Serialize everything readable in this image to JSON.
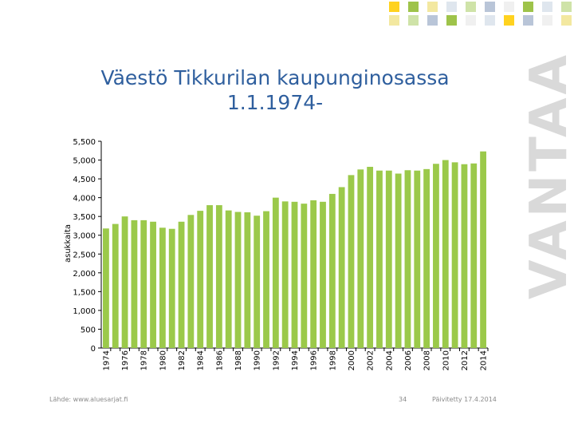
{
  "title": {
    "line1": "Väestö Tikkurilan kaupunginosassa",
    "line2": "1.1.1974-"
  },
  "brand": {
    "logo_text": "VANTAA",
    "logo_color": "#d9d9d9",
    "square_colors": [
      "#ffd21f",
      "#f3e8a0",
      "#9ec34a",
      "#cfe3a8",
      "#b9c5d8",
      "#dfe6ee",
      "#f0f0f0"
    ]
  },
  "footer": {
    "source": "Lähde: www.aluesarjat.fi",
    "page": "34",
    "updated": "Päivitetty 17.4.2014"
  },
  "colors": {
    "title": "#2f5f9e",
    "bar": "#9bc94a",
    "axis": "#000000"
  },
  "chart_data": {
    "type": "bar",
    "title": "",
    "xlabel": "",
    "ylabel": "asukkaita",
    "ylim": [
      0,
      5500
    ],
    "yticks": [
      0,
      500,
      1000,
      1500,
      2000,
      2500,
      3000,
      3500,
      4000,
      4500,
      5000,
      5500
    ],
    "ytick_labels": [
      "0",
      "500",
      "1,000",
      "1,500",
      "2,000",
      "2,500",
      "3,000",
      "3,500",
      "4,000",
      "4,500",
      "5,000",
      "5,500"
    ],
    "categories": [
      "1974",
      "1975",
      "1976",
      "1977",
      "1978",
      "1979",
      "1980",
      "1981",
      "1982",
      "1983",
      "1984",
      "1985",
      "1986",
      "1987",
      "1988",
      "1989",
      "1990",
      "1991",
      "1992",
      "1993",
      "1994",
      "1995",
      "1996",
      "1997",
      "1998",
      "1999",
      "2000",
      "2001",
      "2002",
      "2003",
      "2004",
      "2005",
      "2006",
      "2007",
      "2008",
      "2009",
      "2010",
      "2011",
      "2012",
      "2013",
      "2014"
    ],
    "xtick_labels": [
      "1974",
      "",
      "1976",
      "",
      "1978",
      "",
      "1980",
      "",
      "1982",
      "",
      "1984",
      "",
      "1986",
      "",
      "1988",
      "",
      "1990",
      "",
      "1992",
      "",
      "1994",
      "",
      "1996",
      "",
      "1998",
      "",
      "2000",
      "",
      "2002",
      "",
      "2004",
      "",
      "2006",
      "",
      "2008",
      "",
      "2010",
      "",
      "2012",
      "",
      "2014"
    ],
    "values": [
      3180,
      3300,
      3500,
      3400,
      3400,
      3360,
      3200,
      3170,
      3360,
      3540,
      3650,
      3800,
      3800,
      3660,
      3620,
      3610,
      3520,
      3640,
      4000,
      3900,
      3890,
      3840,
      3930,
      3890,
      4100,
      4280,
      4600,
      4750,
      4820,
      4720,
      4720,
      4640,
      4730,
      4720,
      4760,
      4900,
      5000,
      4940,
      4890,
      4910,
      5230
    ],
    "grid": false,
    "legend": "none"
  }
}
